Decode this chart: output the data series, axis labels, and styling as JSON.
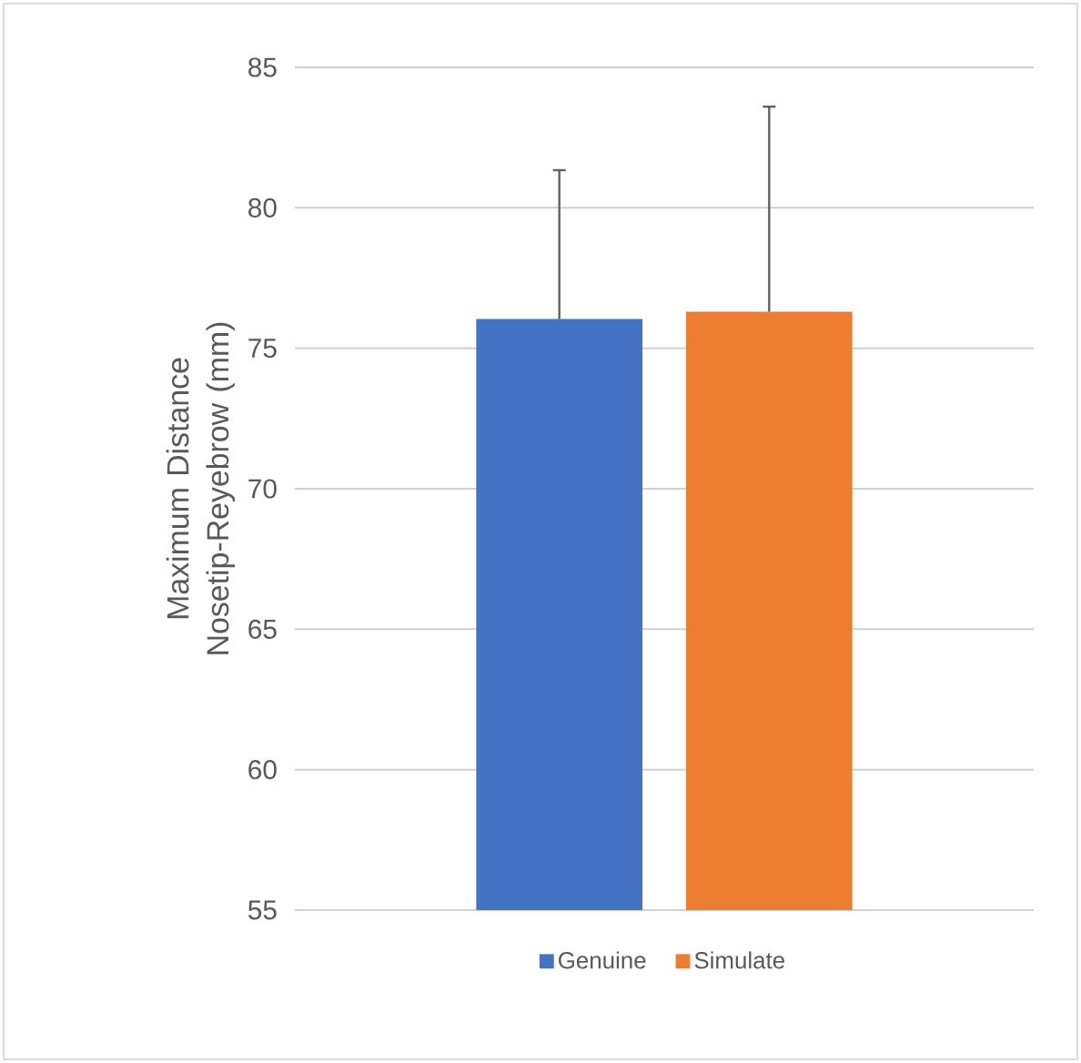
{
  "chart_data": {
    "type": "bar",
    "ylabel": "Maximum Distance Nosetip-Reyebrow (mm)",
    "categories": [
      null
    ],
    "series": [
      {
        "name": "Genuine",
        "color": "#4472c4",
        "values": [
          76.04
        ],
        "errors": [
          5.3
        ]
      },
      {
        "name": "Simulate",
        "color": "#ed7d31",
        "values": [
          76.3
        ],
        "errors": [
          7.3
        ]
      }
    ],
    "ylim": [
      55,
      85
    ],
    "yticks": [
      55,
      60,
      65,
      70,
      75,
      80,
      85
    ],
    "grid": "y",
    "legend": "bottom"
  }
}
